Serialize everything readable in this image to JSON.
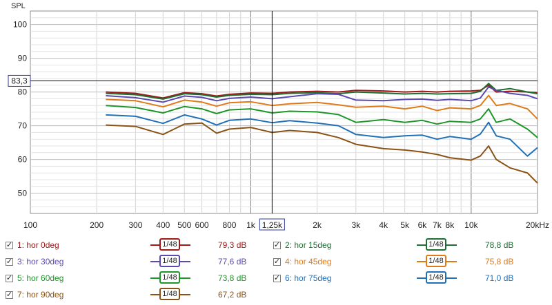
{
  "chart": {
    "y_axis_label": "SPL",
    "y_ticks": [
      "100",
      "90",
      "80",
      "70",
      "60",
      "50"
    ],
    "x_ticks": [
      "100",
      "200",
      "300",
      "400",
      "500",
      "600",
      "800",
      "1k",
      "1,25k",
      "2k",
      "3k",
      "4k",
      "5k",
      "6k",
      "7k",
      "8k",
      "10k",
      "20kHz"
    ],
    "cursor": {
      "y_readout": "83,3",
      "x_readout": "1,25k"
    }
  },
  "chart_data": {
    "type": "line",
    "title": "",
    "xlabel": "",
    "ylabel": "SPL",
    "x_scale": "log",
    "xlim": [
      100,
      20000
    ],
    "ylim": [
      44,
      104
    ],
    "grid": true,
    "series": [
      {
        "name": "1: hor 0deg",
        "color": "#a01818",
        "points": [
          [
            220,
            80.0
          ],
          [
            300,
            79.6
          ],
          [
            400,
            78.2
          ],
          [
            500,
            79.8
          ],
          [
            600,
            79.5
          ],
          [
            700,
            78.8
          ],
          [
            800,
            79.3
          ],
          [
            1000,
            79.7
          ],
          [
            1250,
            79.6
          ],
          [
            1500,
            80.0
          ],
          [
            2000,
            80.2
          ],
          [
            2500,
            80.0
          ],
          [
            3000,
            80.5
          ],
          [
            4000,
            80.3
          ],
          [
            5000,
            80.0
          ],
          [
            6000,
            80.2
          ],
          [
            7000,
            80.0
          ],
          [
            8000,
            80.2
          ],
          [
            10000,
            80.3
          ],
          [
            11000,
            80.5
          ],
          [
            12000,
            82.0
          ],
          [
            13000,
            80.0
          ],
          [
            15000,
            80.2
          ],
          [
            18000,
            80.0
          ],
          [
            20000,
            79.8
          ]
        ]
      },
      {
        "name": "2: hor 15deg",
        "color": "#1e6e32",
        "points": [
          [
            220,
            79.6
          ],
          [
            300,
            79.2
          ],
          [
            400,
            77.9
          ],
          [
            500,
            79.5
          ],
          [
            600,
            79.2
          ],
          [
            700,
            78.5
          ],
          [
            800,
            79.0
          ],
          [
            1000,
            79.3
          ],
          [
            1250,
            79.2
          ],
          [
            1500,
            79.6
          ],
          [
            2000,
            79.8
          ],
          [
            2500,
            79.5
          ],
          [
            3000,
            80.0
          ],
          [
            4000,
            79.7
          ],
          [
            5000,
            79.4
          ],
          [
            6000,
            79.6
          ],
          [
            7000,
            79.4
          ],
          [
            8000,
            79.5
          ],
          [
            10000,
            79.6
          ],
          [
            11000,
            80.2
          ],
          [
            12000,
            82.5
          ],
          [
            13000,
            80.5
          ],
          [
            15000,
            81.0
          ],
          [
            18000,
            80.0
          ],
          [
            20000,
            79.5
          ]
        ]
      },
      {
        "name": "3: hor 30deg",
        "color": "#5a4ab0",
        "points": [
          [
            220,
            78.9
          ],
          [
            300,
            78.3
          ],
          [
            400,
            77.0
          ],
          [
            500,
            78.8
          ],
          [
            600,
            78.4
          ],
          [
            700,
            77.4
          ],
          [
            800,
            78.1
          ],
          [
            1000,
            78.5
          ],
          [
            1250,
            78.0
          ],
          [
            1500,
            78.6
          ],
          [
            2000,
            79.5
          ],
          [
            2500,
            79.3
          ],
          [
            3000,
            77.6
          ],
          [
            4000,
            77.4
          ],
          [
            5000,
            77.8
          ],
          [
            6000,
            77.9
          ],
          [
            7000,
            77.5
          ],
          [
            8000,
            77.8
          ],
          [
            10000,
            77.4
          ],
          [
            11000,
            78.2
          ],
          [
            12000,
            81.5
          ],
          [
            13000,
            80.5
          ],
          [
            15000,
            79.6
          ],
          [
            18000,
            79.0
          ],
          [
            20000,
            78.0
          ]
        ]
      },
      {
        "name": "4: hor 45deg",
        "color": "#e07a18",
        "points": [
          [
            220,
            77.8
          ],
          [
            300,
            77.4
          ],
          [
            400,
            75.6
          ],
          [
            500,
            77.6
          ],
          [
            600,
            77.0
          ],
          [
            700,
            75.8
          ],
          [
            800,
            76.8
          ],
          [
            1000,
            77.1
          ],
          [
            1250,
            76.0
          ],
          [
            1500,
            76.5
          ],
          [
            2000,
            76.9
          ],
          [
            2500,
            76.2
          ],
          [
            3000,
            75.5
          ],
          [
            4000,
            75.8
          ],
          [
            5000,
            75.0
          ],
          [
            6000,
            75.8
          ],
          [
            7000,
            74.5
          ],
          [
            8000,
            75.3
          ],
          [
            10000,
            75.0
          ],
          [
            11000,
            76.0
          ],
          [
            12000,
            79.0
          ],
          [
            13000,
            76.0
          ],
          [
            15000,
            76.6
          ],
          [
            18000,
            75.0
          ],
          [
            20000,
            72.0
          ]
        ]
      },
      {
        "name": "5: hor 60deg",
        "color": "#1f962a",
        "points": [
          [
            220,
            76.0
          ],
          [
            300,
            75.4
          ],
          [
            400,
            73.8
          ],
          [
            500,
            75.7
          ],
          [
            600,
            75.0
          ],
          [
            700,
            73.6
          ],
          [
            800,
            74.7
          ],
          [
            1000,
            75.0
          ],
          [
            1250,
            73.8
          ],
          [
            1500,
            74.3
          ],
          [
            2000,
            74.1
          ],
          [
            2500,
            73.3
          ],
          [
            3000,
            71.0
          ],
          [
            4000,
            71.8
          ],
          [
            5000,
            71.0
          ],
          [
            6000,
            71.6
          ],
          [
            7000,
            70.5
          ],
          [
            8000,
            71.3
          ],
          [
            10000,
            71.0
          ],
          [
            11000,
            72.0
          ],
          [
            12000,
            75.0
          ],
          [
            13000,
            71.0
          ],
          [
            15000,
            72.0
          ],
          [
            18000,
            69.0
          ],
          [
            20000,
            66.5
          ]
        ]
      },
      {
        "name": "6: hor 75deg",
        "color": "#2070b8",
        "points": [
          [
            220,
            73.2
          ],
          [
            300,
            72.8
          ],
          [
            400,
            70.7
          ],
          [
            500,
            73.2
          ],
          [
            600,
            72.0
          ],
          [
            700,
            70.2
          ],
          [
            800,
            71.6
          ],
          [
            1000,
            72.0
          ],
          [
            1250,
            70.9
          ],
          [
            1500,
            71.5
          ],
          [
            2000,
            70.8
          ],
          [
            2500,
            70.0
          ],
          [
            3000,
            67.4
          ],
          [
            4000,
            66.5
          ],
          [
            5000,
            67.0
          ],
          [
            6000,
            67.2
          ],
          [
            7000,
            66.0
          ],
          [
            8000,
            66.8
          ],
          [
            10000,
            66.0
          ],
          [
            11000,
            67.5
          ],
          [
            12000,
            71.0
          ],
          [
            13000,
            67.0
          ],
          [
            15000,
            66.0
          ],
          [
            18000,
            61.0
          ],
          [
            20000,
            63.5
          ]
        ]
      },
      {
        "name": "7: hor 90deg",
        "color": "#8a5214",
        "points": [
          [
            220,
            70.2
          ],
          [
            300,
            69.8
          ],
          [
            400,
            67.4
          ],
          [
            500,
            70.5
          ],
          [
            600,
            70.8
          ],
          [
            700,
            67.8
          ],
          [
            800,
            69.0
          ],
          [
            1000,
            69.5
          ],
          [
            1250,
            68.0
          ],
          [
            1500,
            68.6
          ],
          [
            2000,
            68.0
          ],
          [
            2500,
            66.5
          ],
          [
            3000,
            64.5
          ],
          [
            4000,
            63.2
          ],
          [
            5000,
            62.8
          ],
          [
            6000,
            62.2
          ],
          [
            7000,
            61.5
          ],
          [
            8000,
            60.5
          ],
          [
            10000,
            59.8
          ],
          [
            11000,
            61.0
          ],
          [
            12000,
            64.0
          ],
          [
            13000,
            60.0
          ],
          [
            15000,
            57.5
          ],
          [
            18000,
            56.0
          ],
          [
            20000,
            53.0
          ]
        ]
      }
    ]
  },
  "legend": [
    {
      "label": "1: hor 0deg",
      "color": "#a01818",
      "smoothing": "1/48",
      "level": "79,3 dB",
      "checked": "✓"
    },
    {
      "label": "2: hor 15deg",
      "color": "#1e6e32",
      "smoothing": "1/48",
      "level": "78,8 dB",
      "checked": "✓"
    },
    {
      "label": "3: hor 30deg",
      "color": "#5a4ab0",
      "smoothing": "1/48",
      "level": "77,6 dB",
      "checked": "✓"
    },
    {
      "label": "4: hor 45deg",
      "color": "#e07a18",
      "smoothing": "1/48",
      "level": "75,8 dB",
      "checked": "✓"
    },
    {
      "label": "5: hor 60deg",
      "color": "#1f962a",
      "smoothing": "1/48",
      "level": "73,8 dB",
      "checked": "✓"
    },
    {
      "label": "6: hor 75deg",
      "color": "#2070b8",
      "smoothing": "1/48",
      "level": "71,0 dB",
      "checked": "✓"
    },
    {
      "label": "7: hor 90deg",
      "color": "#8a5214",
      "smoothing": "1/48",
      "level": "67,2 dB",
      "checked": "✓"
    }
  ]
}
